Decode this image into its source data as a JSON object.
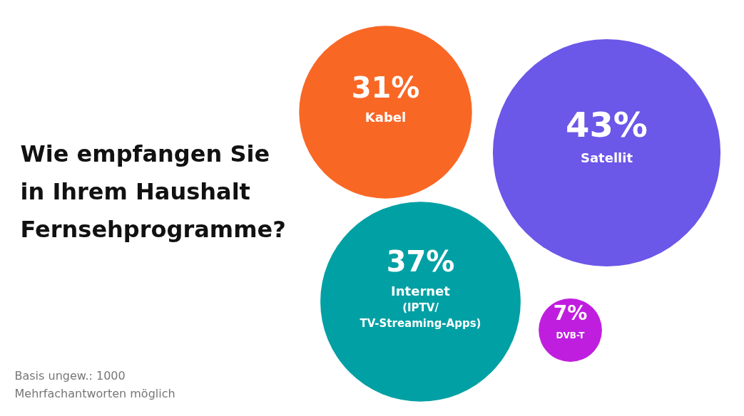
{
  "chart_data": {
    "type": "other",
    "title": "Wie empfangen Sie\nin Ihrem Haushalt\nFernsehprogramme?",
    "categories": [
      "Kabel",
      "Satellit",
      "Internet\n(IPTV/\nTV-Streaming-Apps)",
      "DVB-T"
    ],
    "values": [
      31,
      43,
      37,
      7
    ],
    "value_labels": [
      "31%",
      "43%",
      "37%",
      "7%"
    ],
    "colors": [
      "#f96725",
      "#6b57e8",
      "#00a0a4",
      "#c01ede"
    ],
    "annotations": [
      "Basis ungew.: 1000",
      "Mehrfachantworten möglich"
    ]
  }
}
